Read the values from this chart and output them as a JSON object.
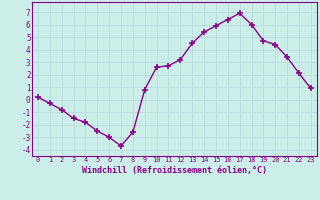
{
  "x": [
    0,
    1,
    2,
    3,
    4,
    5,
    6,
    7,
    8,
    9,
    10,
    11,
    12,
    13,
    14,
    15,
    16,
    17,
    18,
    19,
    20,
    21,
    22,
    23
  ],
  "y": [
    0.2,
    -0.3,
    -0.8,
    -1.5,
    -1.8,
    -2.5,
    -3.0,
    -3.7,
    -2.6,
    0.8,
    2.6,
    2.7,
    3.2,
    4.5,
    5.4,
    5.9,
    6.4,
    6.9,
    6.0,
    4.7,
    4.4,
    3.4,
    2.1,
    0.9
  ],
  "line_color": "#880088",
  "marker_color": "#880088",
  "bg_color": "#cceee8",
  "grid_color": "#bbdddd",
  "xlabel": "Windchill (Refroidissement éolien,°C)",
  "xlabel_color": "#880088",
  "tick_color": "#880088",
  "ylim": [
    -4.5,
    7.8
  ],
  "xlim": [
    -0.5,
    23.5
  ],
  "yticks": [
    -4,
    -3,
    -2,
    -1,
    0,
    1,
    2,
    3,
    4,
    5,
    6,
    7
  ],
  "xticks": [
    0,
    1,
    2,
    3,
    4,
    5,
    6,
    7,
    8,
    9,
    10,
    11,
    12,
    13,
    14,
    15,
    16,
    17,
    18,
    19,
    20,
    21,
    22,
    23
  ],
  "xtick_labels": [
    "0",
    "1",
    "2",
    "3",
    "4",
    "5",
    "6",
    "7",
    "8",
    "9",
    "10",
    "11",
    "12",
    "13",
    "14",
    "15",
    "16",
    "17",
    "18",
    "19",
    "20",
    "21",
    "22",
    "23"
  ],
  "linewidth": 1.0,
  "markersize": 4,
  "marker": "+"
}
